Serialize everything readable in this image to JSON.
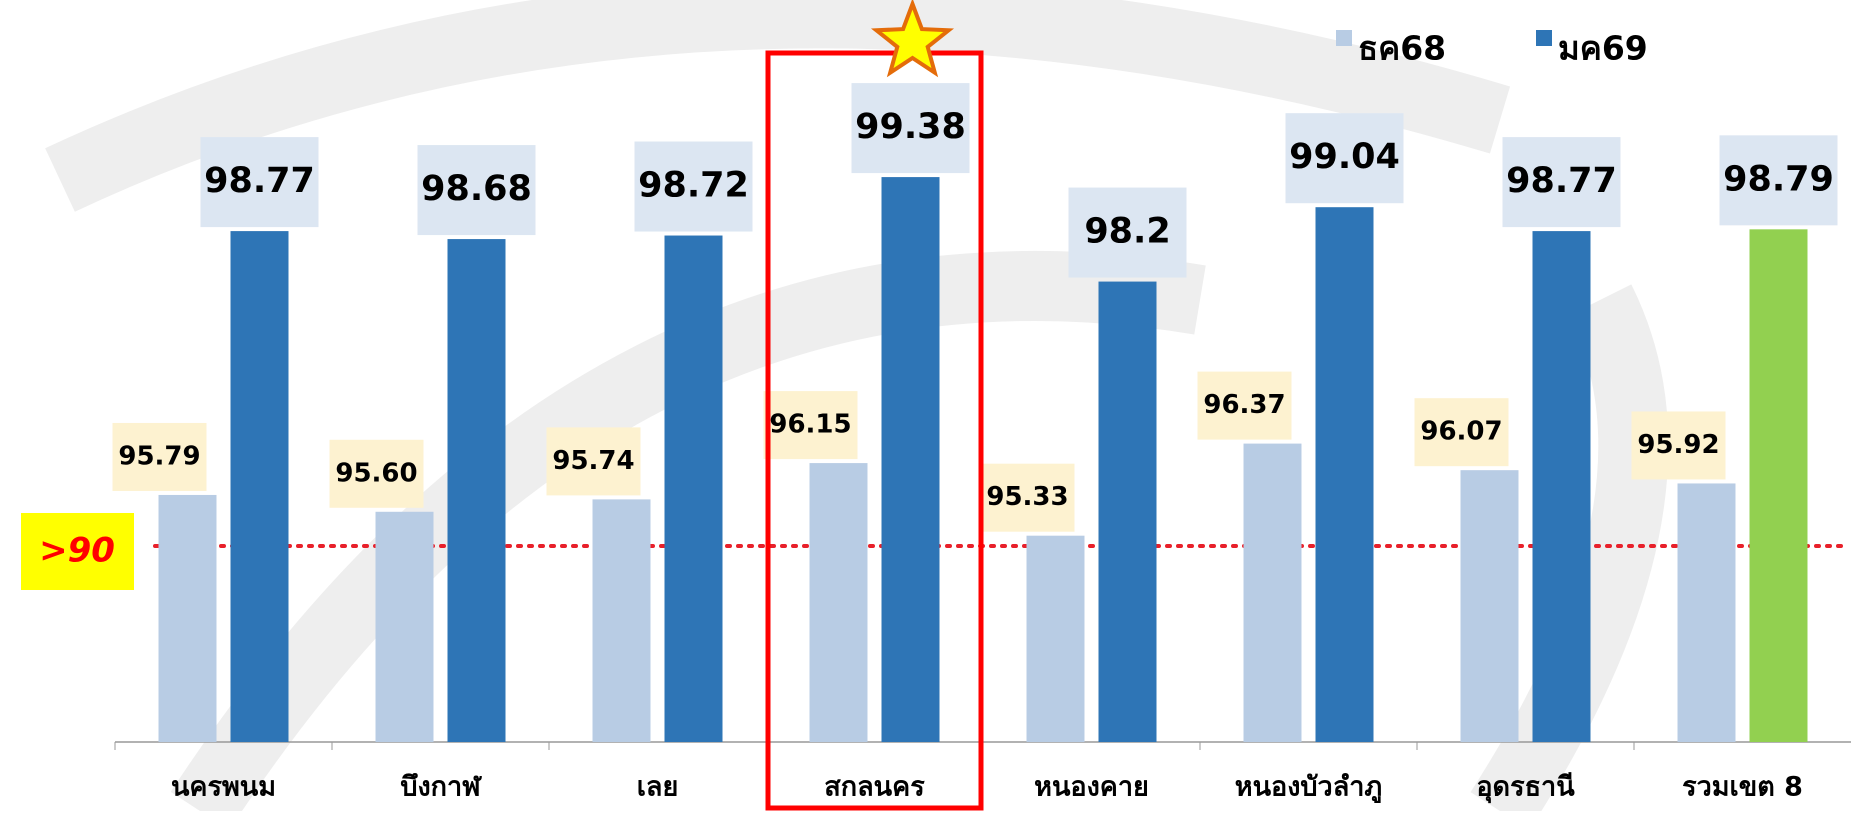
{
  "chart_data": {
    "type": "bar",
    "categories": [
      "นครพนม",
      "บึงกาฬ",
      "เลย",
      "สกลนคร",
      "หนองคาย",
      "หนองบัวลำภู",
      "อุดรธานี",
      "รวมเขต 8"
    ],
    "series": [
      {
        "name": "ธค68",
        "color": "#b8cce4",
        "values": [
          95.79,
          95.6,
          95.74,
          96.15,
          95.33,
          96.37,
          96.07,
          95.92
        ],
        "value_labels": [
          "95.79",
          "95.60",
          "95.74",
          "96.15",
          "95.33",
          "96.37",
          "96.07",
          "95.92"
        ]
      },
      {
        "name": "มค69",
        "color": "#2e75b6",
        "values": [
          98.77,
          98.68,
          98.72,
          99.38,
          98.2,
          99.04,
          98.77,
          98.79
        ],
        "colors": [
          "#2e75b6",
          "#2e75b6",
          "#2e75b6",
          "#2e75b6",
          "#2e75b6",
          "#2e75b6",
          "#2e75b6",
          "#92d050"
        ]
      }
    ],
    "ylim": [
      93,
      101.38
    ],
    "threshold_label": ">90",
    "highlight": 3
  }
}
